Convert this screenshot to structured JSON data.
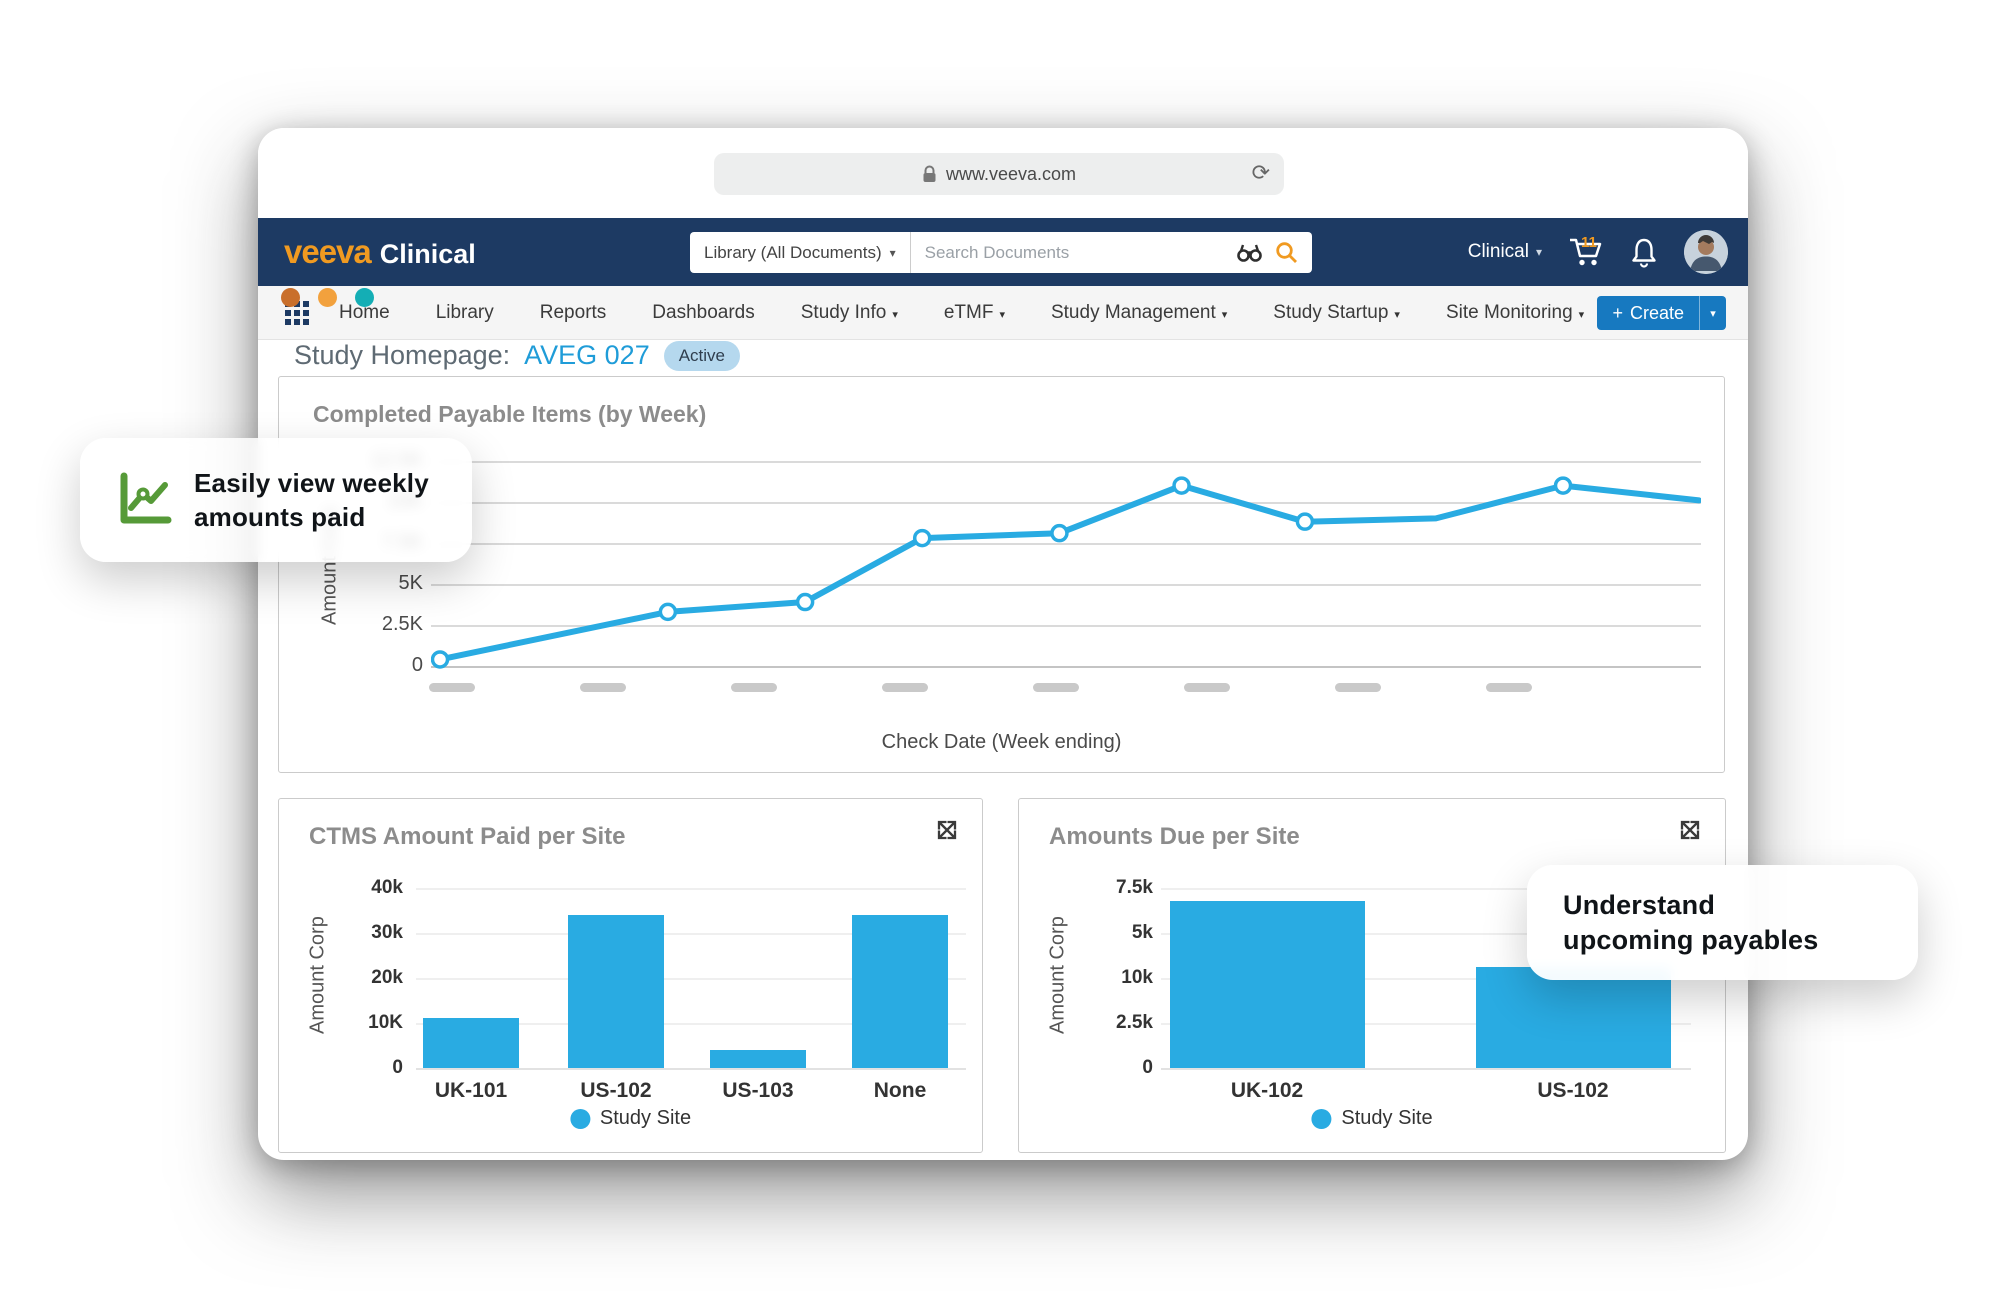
{
  "browser": {
    "url": "www.veeva.com",
    "dot_colors": [
      "#C96F2B",
      "#F2A13D",
      "#14AEB5"
    ]
  },
  "appbar": {
    "brand": "veeva",
    "product": "Clinical",
    "search_scope": "Library (All Documents)",
    "search_placeholder": "Search Documents",
    "workspace": "Clinical",
    "cart_count": "11"
  },
  "navbar": {
    "items": [
      {
        "label": "Home",
        "caret": false
      },
      {
        "label": "Library",
        "caret": false
      },
      {
        "label": "Reports",
        "caret": false
      },
      {
        "label": "Dashboards",
        "caret": false
      },
      {
        "label": "Study Info",
        "caret": true
      },
      {
        "label": "eTMF",
        "caret": true
      },
      {
        "label": "Study Management",
        "caret": true
      },
      {
        "label": "Study Startup",
        "caret": true
      },
      {
        "label": "Site Monitoring",
        "caret": true
      }
    ],
    "create_plus": "+",
    "create_label": "Create"
  },
  "page": {
    "title": "Study Homepage:",
    "study_id": "AVEG 027",
    "status": "Active"
  },
  "callouts": {
    "left": {
      "line1": "Easily view weekly",
      "line2": "amounts paid",
      "icon": "line-chart-icon",
      "icon_color": "#569A38"
    },
    "right": {
      "line1": "Understand",
      "line2": "upcoming payables"
    }
  },
  "colors": {
    "accent_blue": "#29ABE2",
    "navy": "#1D3A63",
    "orange": "#F09A21",
    "create_blue": "#1779C0",
    "study_blue": "#1F9CD8"
  },
  "chart_data": [
    {
      "type": "line",
      "title": "Completed Payable Items (by Week)",
      "ylabel": "Amount Corp",
      "xlabel": "Check Date (Week ending)",
      "ylim": [
        0,
        12500
      ],
      "yticks_top_to_bottom": [
        "12.5K",
        "10K",
        "7.5K",
        "5K",
        "2.5K",
        "0"
      ],
      "x_tick_labels": "blurred placeholder dashes (8)",
      "x_dash_count": 8,
      "legend_position": "none",
      "grid": true,
      "series": [
        {
          "name": "Completed Payable Items",
          "color": "#29ABE2",
          "points": [
            {
              "week": 1,
              "value": 400,
              "x_frac": 0.0,
              "marker": true
            },
            {
              "week": 2,
              "value": 3300,
              "x_frac": 0.181,
              "marker": true
            },
            {
              "week": 3,
              "value": 3900,
              "x_frac": 0.29,
              "marker": true
            },
            {
              "week": 4,
              "value": 7800,
              "x_frac": 0.383,
              "marker": true
            },
            {
              "week": 5,
              "value": 8100,
              "x_frac": 0.492,
              "marker": true
            },
            {
              "week": 6,
              "value": 11000,
              "x_frac": 0.589,
              "marker": true
            },
            {
              "week": 7,
              "value": 8800,
              "x_frac": 0.687,
              "marker": true
            },
            {
              "week": 8,
              "value": 9000,
              "x_frac": 0.791,
              "marker": false
            },
            {
              "week": 9,
              "value": 11000,
              "x_frac": 0.892,
              "marker": true
            },
            {
              "week": 10,
              "value": 10100,
              "x_frac": 1.0,
              "marker": false
            }
          ]
        }
      ]
    },
    {
      "type": "bar",
      "title": "CTMS Amount Paid per Site",
      "ylabel": "Amount Corp",
      "yticks_top_to_bottom": [
        "40k",
        "30k",
        "20k",
        "10K",
        "0"
      ],
      "axis_top_value": 40000,
      "categories": [
        "UK-101",
        "US-102",
        "US-103",
        "None"
      ],
      "values": [
        11000,
        34000,
        4000,
        34000
      ],
      "legend": "Study Site",
      "bar_color": "#29ABE2",
      "grid": true
    },
    {
      "type": "bar",
      "title": "Amounts Due per Site",
      "ylabel": "Amount Corp",
      "yticks_top_to_bottom": [
        "7.5k",
        "5k",
        "10k",
        "2.5k",
        "0"
      ],
      "axis_note": "tick labels reproduced verbatim as displayed",
      "categories": [
        "UK-102",
        "US-102"
      ],
      "values_approx": [
        6900,
        4200
      ],
      "height_frac_of_axis": [
        0.93,
        0.56
      ],
      "legend": "Study Site",
      "bar_color": "#29ABE2",
      "grid": true
    }
  ]
}
